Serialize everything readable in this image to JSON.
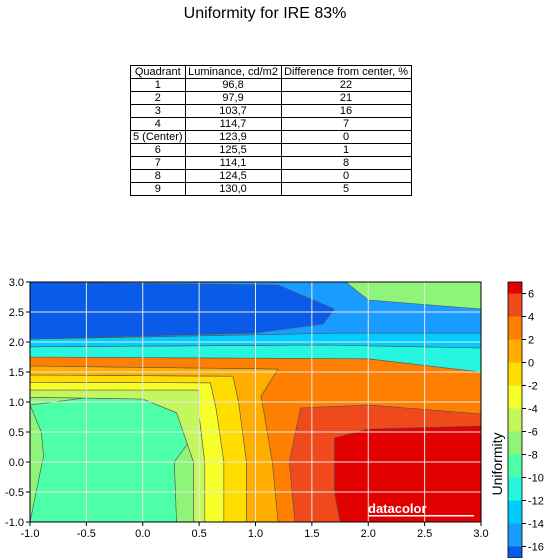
{
  "chart_data": [
    {
      "type": "table",
      "title": "Uniformity for IRE 83%",
      "columns": [
        "Quadrant",
        "Luminance, cd/m2",
        "Difference from center, %"
      ],
      "rows": [
        [
          "1",
          "96,8",
          "22"
        ],
        [
          "2",
          "97,9",
          "21"
        ],
        [
          "3",
          "103,7",
          "16"
        ],
        [
          "4",
          "114,7",
          "7"
        ],
        [
          "5 (Center)",
          "123,9",
          "0"
        ],
        [
          "6",
          "125,5",
          "1"
        ],
        [
          "7",
          "114,1",
          "8"
        ],
        [
          "8",
          "124,5",
          "0"
        ],
        [
          "9",
          "130,0",
          "5"
        ]
      ]
    },
    {
      "type": "heatmap",
      "xlim": [
        -1.0,
        3.0
      ],
      "ylim": [
        -1.0,
        3.0
      ],
      "x_ticks": [
        "-1.0",
        "-0.5",
        "0.0",
        "0.5",
        "1.0",
        "1.5",
        "2.0",
        "2.5",
        "3.0"
      ],
      "y_ticks": [
        "-1.0",
        "-0.5",
        "0.0",
        "0.5",
        "1.0",
        "1.5",
        "2.0",
        "2.5",
        "3.0"
      ],
      "grid": true,
      "colorbar": {
        "label": "Uniformity",
        "ticks": [
          "6",
          "4",
          "2",
          "0",
          "-2",
          "-4",
          "-6",
          "-8",
          "-10",
          "-12",
          "-14",
          "-16"
        ],
        "range": [
          -17,
          7
        ],
        "bands": [
          {
            "from": 6,
            "to": 7,
            "color": "#e30000"
          },
          {
            "from": 4,
            "to": 6,
            "color": "#f04a1c"
          },
          {
            "from": 2,
            "to": 4,
            "color": "#ff7f00"
          },
          {
            "from": 0,
            "to": 2,
            "color": "#ffae00"
          },
          {
            "from": -2,
            "to": 0,
            "color": "#ffdd00"
          },
          {
            "from": -4,
            "to": -2,
            "color": "#f6ff2a"
          },
          {
            "from": -6,
            "to": -4,
            "color": "#c4f75c"
          },
          {
            "from": -8,
            "to": -6,
            "color": "#8ff57a"
          },
          {
            "from": -10,
            "to": -8,
            "color": "#4dffa6"
          },
          {
            "from": -12,
            "to": -10,
            "color": "#26f5e0"
          },
          {
            "from": -14,
            "to": -12,
            "color": "#00ccff"
          },
          {
            "from": -16,
            "to": -14,
            "color": "#1a9bff"
          },
          {
            "from": -17,
            "to": -16,
            "color": "#0a5be8"
          }
        ]
      },
      "regions": [
        {
          "name": "region-1",
          "color": "#4dffa6",
          "points": [
            [
              -1.0,
              -1.0
            ],
            [
              -0.88,
              0.1
            ],
            [
              -0.9,
              0.5
            ],
            [
              -1.0,
              0.95
            ],
            [
              0.85,
              1.4
            ],
            [
              1.45,
              1.5
            ],
            [
              1.55,
              1.05
            ],
            [
              1.15,
              1.0
            ],
            [
              0.6,
              0.82
            ],
            [
              0.28,
              0.0
            ],
            [
              0.3,
              -1.0
            ]
          ]
        },
        {
          "name": "region-2",
          "color": "#8ff57a",
          "points": [
            [
              -1.0,
              -1.0
            ],
            [
              -1.0,
              0.95
            ],
            [
              -0.9,
              0.5
            ],
            [
              -0.88,
              0.1
            ],
            [
              -1.0,
              -1.0
            ]
          ]
        },
        {
          "name": "region-3",
          "color": "#8ff57a",
          "points": [
            [
              0.3,
              -1.0
            ],
            [
              0.28,
              0.0
            ],
            [
              0.6,
              0.82
            ],
            [
              1.15,
              1.0
            ],
            [
              1.55,
              1.05
            ],
            [
              1.45,
              1.5
            ],
            [
              0.85,
              1.4
            ],
            [
              -1.0,
              0.95
            ],
            [
              -1.0,
              1.08
            ],
            [
              0.0,
              1.05
            ],
            [
              0.3,
              0.82
            ],
            [
              0.45,
              0.0
            ],
            [
              0.45,
              -1.0
            ]
          ]
        },
        {
          "name": "region-4",
          "color": "#c4f75c",
          "points": [
            [
              0.45,
              -1.0
            ],
            [
              0.45,
              0.0
            ],
            [
              0.3,
              0.82
            ],
            [
              0.0,
              1.05
            ],
            [
              -1.0,
              1.08
            ],
            [
              -1.0,
              1.2
            ],
            [
              0.5,
              1.2
            ],
            [
              0.5,
              0.78
            ],
            [
              0.55,
              0.0
            ],
            [
              0.55,
              -1.0
            ]
          ]
        },
        {
          "name": "region-5",
          "color": "#f6ff2a",
          "points": [
            [
              0.55,
              -1.0
            ],
            [
              0.55,
              0.0
            ],
            [
              0.5,
              0.78
            ],
            [
              0.5,
              1.2
            ],
            [
              -1.0,
              1.2
            ],
            [
              -1.0,
              1.33
            ],
            [
              0.6,
              1.32
            ],
            [
              0.65,
              0.9
            ],
            [
              0.72,
              0.0
            ],
            [
              0.72,
              -1.0
            ]
          ]
        },
        {
          "name": "region-6",
          "color": "#ffdd00",
          "points": [
            [
              0.72,
              -1.0
            ],
            [
              0.72,
              0.0
            ],
            [
              0.65,
              0.9
            ],
            [
              0.6,
              1.32
            ],
            [
              -1.0,
              1.33
            ],
            [
              -1.0,
              1.45
            ],
            [
              0.8,
              1.43
            ],
            [
              0.85,
              1.0
            ],
            [
              0.92,
              0.0
            ],
            [
              0.92,
              -1.0
            ]
          ]
        },
        {
          "name": "region-7",
          "color": "#ffae00",
          "points": [
            [
              0.92,
              -1.0
            ],
            [
              0.92,
              0.0
            ],
            [
              0.85,
              1.0
            ],
            [
              0.8,
              1.43
            ],
            [
              -1.0,
              1.45
            ],
            [
              -1.0,
              1.6
            ],
            [
              1.2,
              1.55
            ],
            [
              1.05,
              1.1
            ],
            [
              1.15,
              0.0
            ],
            [
              1.2,
              -1.0
            ]
          ]
        },
        {
          "name": "region-8",
          "color": "#ff7f00",
          "points": [
            [
              1.2,
              -1.0
            ],
            [
              1.15,
              0.0
            ],
            [
              1.05,
              1.1
            ],
            [
              1.2,
              1.55
            ],
            [
              -1.0,
              1.6
            ],
            [
              -1.0,
              1.75
            ],
            [
              2.0,
              1.72
            ],
            [
              3.0,
              1.5
            ],
            [
              3.0,
              0.8
            ],
            [
              2.0,
              0.95
            ],
            [
              1.4,
              0.9
            ],
            [
              1.3,
              0.0
            ],
            [
              1.35,
              -1.0
            ]
          ]
        },
        {
          "name": "region-9",
          "color": "#f04a1c",
          "points": [
            [
              1.35,
              -1.0
            ],
            [
              1.3,
              0.0
            ],
            [
              1.4,
              0.9
            ],
            [
              2.0,
              0.95
            ],
            [
              3.0,
              0.8
            ],
            [
              3.0,
              0.6
            ],
            [
              2.0,
              0.55
            ],
            [
              1.7,
              0.4
            ],
            [
              1.7,
              -0.5
            ],
            [
              1.75,
              -1.0
            ]
          ]
        },
        {
          "name": "region-10",
          "color": "#e30000",
          "points": [
            [
              1.75,
              -1.0
            ],
            [
              1.7,
              -0.5
            ],
            [
              1.7,
              0.4
            ],
            [
              2.0,
              0.55
            ],
            [
              3.0,
              0.6
            ],
            [
              3.0,
              -1.0
            ]
          ]
        },
        {
          "name": "region-11",
          "color": "#26f5e0",
          "points": [
            [
              -1.0,
              1.75
            ],
            [
              2.0,
              1.72
            ],
            [
              3.0,
              1.5
            ],
            [
              3.0,
              1.9
            ],
            [
              1.6,
              1.95
            ],
            [
              -1.0,
              1.92
            ]
          ]
        },
        {
          "name": "region-12",
          "color": "#00ccff",
          "points": [
            [
              -1.0,
              1.92
            ],
            [
              1.6,
              1.95
            ],
            [
              3.0,
              1.9
            ],
            [
              3.0,
              2.15
            ],
            [
              1.8,
              2.15
            ],
            [
              -1.0,
              2.05
            ]
          ]
        },
        {
          "name": "region-13",
          "color": "#1a9bff",
          "points": [
            [
              -1.0,
              2.05
            ],
            [
              1.8,
              2.15
            ],
            [
              3.0,
              2.15
            ],
            [
              3.0,
              2.55
            ],
            [
              2.0,
              2.7
            ],
            [
              1.8,
              3.0
            ],
            [
              -1.0,
              3.0
            ]
          ]
        },
        {
          "name": "region-14",
          "color": "#0a5be8",
          "points": [
            [
              -1.0,
              2.05
            ],
            [
              1.0,
              2.15
            ],
            [
              1.6,
              2.3
            ],
            [
              1.7,
              2.55
            ],
            [
              1.2,
              2.95
            ],
            [
              -1.0,
              3.0
            ]
          ]
        }
      ],
      "watermark": "datacolor"
    }
  ]
}
